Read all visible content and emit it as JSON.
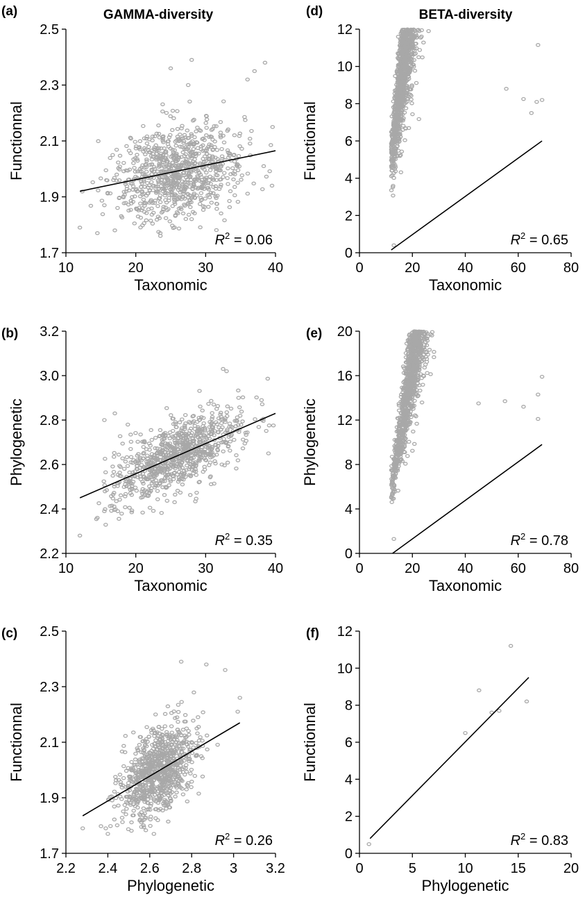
{
  "figure": {
    "column_titles": [
      "GAMMA-diversity",
      "BETA-diversity"
    ]
  },
  "chart_data": [
    {
      "id": "a",
      "panel_label": "(a)",
      "type": "scatter",
      "xlabel": "Taxonomic",
      "ylabel": "Functionnal",
      "xlim": [
        10,
        40
      ],
      "ylim": [
        1.7,
        2.5
      ],
      "xticks": [
        10,
        20,
        30,
        40
      ],
      "yticks": [
        1.7,
        1.9,
        2.1,
        2.3,
        2.5
      ],
      "xtick_labels": [
        "10",
        "20",
        "30",
        "40"
      ],
      "ytick_labels": [
        "1.7",
        "1.9",
        "2.1",
        "2.3",
        "2.5"
      ],
      "r2_text": "= 0.06",
      "r2": 0.06,
      "fit_line": {
        "x": [
          12,
          40
        ],
        "y": [
          1.92,
          2.065
        ]
      },
      "cloud": {
        "n": 900,
        "x_mean": 26,
        "x_sd": 4.7,
        "y_sd": 0.085,
        "x_min": 12,
        "x_max": 40,
        "y_min": 1.76,
        "y_max": 2.39
      },
      "points": [
        [
          12,
          1.79
        ],
        [
          14.5,
          1.77
        ],
        [
          17,
          1.78
        ],
        [
          15.5,
          1.87
        ],
        [
          23.5,
          1.77
        ],
        [
          28,
          2.39
        ],
        [
          25,
          2.36
        ],
        [
          37,
          2.35
        ],
        [
          38.5,
          2.38
        ],
        [
          39.5,
          1.94
        ],
        [
          36,
          2.32
        ],
        [
          27.5,
          2.3
        ]
      ],
      "marker_color": "#a8a8a8",
      "line_color": "#000000"
    },
    {
      "id": "b",
      "panel_label": "(b)",
      "type": "scatter",
      "xlabel": "Taxonomic",
      "ylabel": "Phylogenetic",
      "xlim": [
        10,
        40
      ],
      "ylim": [
        2.2,
        3.2
      ],
      "xticks": [
        10,
        20,
        30,
        40
      ],
      "yticks": [
        2.2,
        2.4,
        2.6,
        2.8,
        3.0,
        3.2
      ],
      "xtick_labels": [
        "10",
        "20",
        "30",
        "40"
      ],
      "ytick_labels": [
        "2.2",
        "2.4",
        "2.6",
        "2.8",
        "3.0",
        "3.2"
      ],
      "r2_text": "= 0.35",
      "r2": 0.35,
      "fit_line": {
        "x": [
          12,
          40
        ],
        "y": [
          2.45,
          2.83
        ]
      },
      "cloud": {
        "n": 900,
        "x_mean": 26,
        "x_sd": 4.7,
        "y_sd": 0.075,
        "x_min": 14,
        "x_max": 40,
        "y_min": 2.3,
        "y_max": 3.05
      },
      "points": [
        [
          12,
          2.28
        ],
        [
          14.5,
          2.36
        ],
        [
          15.5,
          2.39
        ],
        [
          15.5,
          2.8
        ],
        [
          17,
          2.83
        ],
        [
          32.5,
          3.03
        ],
        [
          33,
          3.02
        ],
        [
          39,
          2.65
        ],
        [
          38,
          2.89
        ]
      ],
      "marker_color": "#a8a8a8",
      "line_color": "#000000"
    },
    {
      "id": "c",
      "panel_label": "(c)",
      "type": "scatter",
      "xlabel": "Phylogenetic",
      "ylabel": "Functionnal",
      "xlim": [
        2.2,
        3.2
      ],
      "ylim": [
        1.7,
        2.5
      ],
      "xticks": [
        2.2,
        2.4,
        2.6,
        2.8,
        3.0,
        3.2
      ],
      "yticks": [
        1.7,
        1.9,
        2.1,
        2.3,
        2.5
      ],
      "xtick_labels": [
        "2.2",
        "2.4",
        "2.6",
        "2.8",
        "3",
        "3.2"
      ],
      "ytick_labels": [
        "1.7",
        "1.9",
        "2.1",
        "2.3",
        "2.5"
      ],
      "r2_text": "= 0.26",
      "r2": 0.26,
      "fit_line": {
        "x": [
          2.28,
          3.03
        ],
        "y": [
          1.835,
          2.17
        ]
      },
      "cloud": {
        "n": 900,
        "x_mean": 2.64,
        "x_sd": 0.09,
        "y_sd": 0.075,
        "x_min": 2.35,
        "x_max": 3.0,
        "y_min": 1.77,
        "y_max": 2.39
      },
      "points": [
        [
          2.28,
          1.79
        ],
        [
          2.39,
          1.79
        ],
        [
          2.4,
          1.77
        ],
        [
          2.62,
          1.77
        ],
        [
          2.75,
          2.39
        ],
        [
          2.87,
          2.38
        ],
        [
          2.96,
          2.36
        ],
        [
          3.03,
          2.26
        ],
        [
          3.02,
          2.21
        ]
      ],
      "marker_color": "#a8a8a8",
      "line_color": "#000000"
    },
    {
      "id": "d",
      "panel_label": "(d)",
      "type": "scatter",
      "xlabel": "Taxonomic",
      "ylabel": "Functionnal",
      "xlim": [
        0,
        80
      ],
      "ylim": [
        0,
        12
      ],
      "xticks": [
        0,
        20,
        40,
        60,
        80
      ],
      "yticks": [
        0,
        2,
        4,
        6,
        8,
        10,
        12
      ],
      "xtick_labels": [
        "0",
        "20",
        "40",
        "60",
        "80"
      ],
      "ytick_labels": [
        "0",
        "2",
        "4",
        "6",
        "8",
        "10",
        "12"
      ],
      "r2_text": "= 0.65",
      "r2": 0.65,
      "fit_line": {
        "x": [
          12,
          69
        ],
        "y": [
          0.15,
          6.0
        ]
      },
      "cloud": {
        "n": 1000,
        "x_mean": 32,
        "x_sd": 9.5,
        "x_min": 12,
        "x_max": 62,
        "curve": [
          0.012,
          0.9,
          1.3
        ],
        "noise": 0.16
      },
      "points": [
        [
          67.5,
          11.15
        ],
        [
          67,
          8.1
        ],
        [
          69,
          8.2
        ],
        [
          55.5,
          8.8
        ],
        [
          62,
          8.25
        ],
        [
          13,
          0.4
        ],
        [
          65,
          7.5
        ]
      ],
      "marker_color": "#a8a8a8",
      "line_color": "#000000"
    },
    {
      "id": "e",
      "panel_label": "(e)",
      "type": "scatter",
      "xlabel": "Taxonomic",
      "ylabel": "Phylogenetic",
      "xlim": [
        0,
        80
      ],
      "ylim": [
        0,
        20
      ],
      "xticks": [
        0,
        20,
        40,
        60,
        80
      ],
      "yticks": [
        0,
        4,
        8,
        12,
        16,
        20
      ],
      "xtick_labels": [
        "0",
        "20",
        "40",
        "60",
        "80"
      ],
      "ytick_labels": [
        "0",
        "4",
        "8",
        "12",
        "16",
        "20"
      ],
      "r2_text": "= 0.78",
      "r2": 0.78,
      "fit_line": {
        "x": [
          12.5,
          69
        ],
        "y": [
          0,
          9.8
        ]
      },
      "cloud": {
        "n": 1000,
        "x_mean": 33,
        "x_sd": 9.5,
        "x_min": 12,
        "x_max": 62,
        "curve": [
          0.015,
          1.0,
          1.5
        ],
        "noise": 0.14
      },
      "points": [
        [
          69,
          15.9
        ],
        [
          67.5,
          14.3
        ],
        [
          62,
          13.2
        ],
        [
          55,
          13.7
        ],
        [
          67.5,
          12.1
        ],
        [
          45,
          13.5
        ],
        [
          13,
          1.3
        ]
      ],
      "marker_color": "#a8a8a8",
      "line_color": "#000000"
    },
    {
      "id": "f",
      "panel_label": "(f)",
      "type": "scatter",
      "xlabel": "Phylogenetic",
      "ylabel": "Functionnal",
      "xlim": [
        0,
        20
      ],
      "ylim": [
        0,
        12
      ],
      "xticks": [
        0,
        5,
        10,
        15,
        20
      ],
      "yticks": [
        0,
        2,
        4,
        6,
        8,
        10,
        12
      ],
      "xtick_labels": [
        "0",
        "5",
        "10",
        "15",
        "20"
      ],
      "ytick_labels": [
        "0",
        "2",
        "4",
        "6",
        "8",
        "10",
        "12"
      ],
      "r2_text": "= 0.83",
      "r2": 0.83,
      "fit_line": {
        "x": [
          1.0,
          16
        ],
        "y": [
          0.8,
          9.5
        ]
      },
      "cloud": {
        "n": 1000,
        "x_mean": 3.8,
        "x_sd": 1.6,
        "x_min": 0.9,
        "x_max": 9,
        "curve": [
          0.0,
          0.55,
          0.25
        ],
        "noise": 0.13
      },
      "points": [
        [
          14.3,
          11.2
        ],
        [
          15.8,
          8.2
        ],
        [
          11.3,
          8.8
        ],
        [
          12.5,
          7.6
        ],
        [
          13.2,
          7.7
        ],
        [
          0.9,
          0.5
        ],
        [
          10,
          6.5
        ]
      ],
      "marker_color": "#a8a8a8",
      "line_color": "#000000"
    }
  ]
}
